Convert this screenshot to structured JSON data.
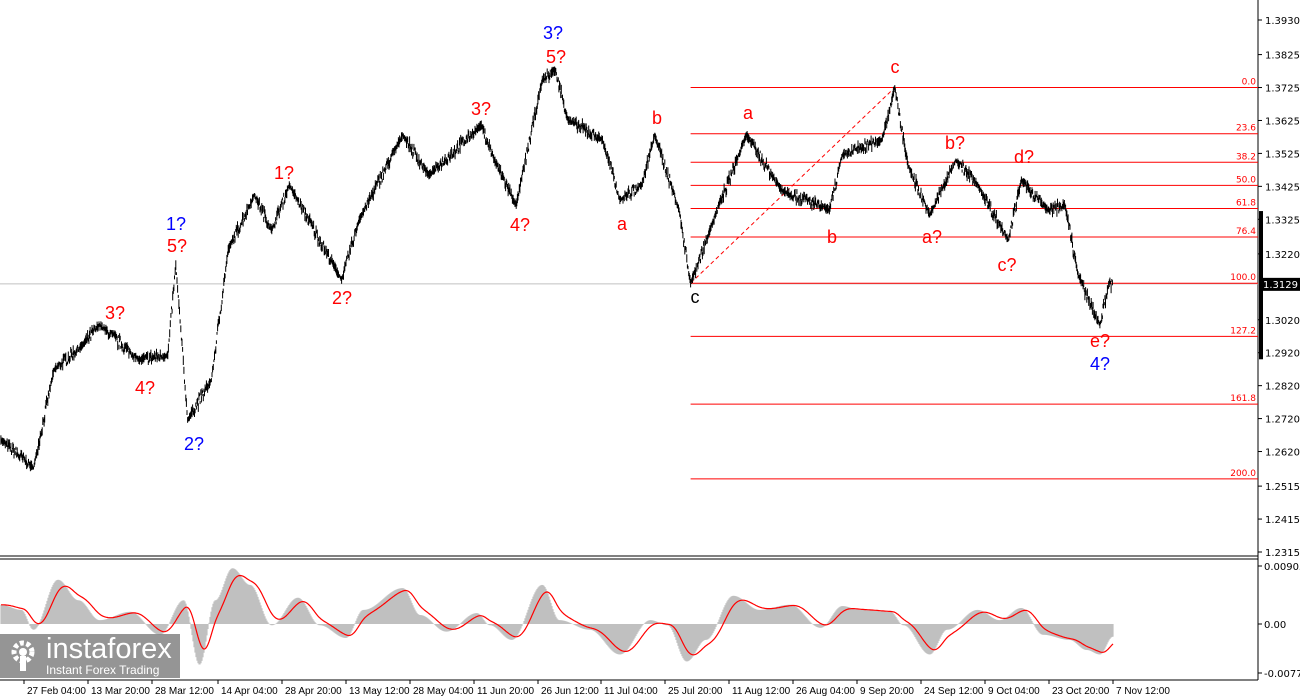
{
  "chart_data": [
    {
      "type": "line",
      "panel": "price",
      "y_ticks": [
        "1.3930",
        "1.3825",
        "1.3725",
        "1.3625",
        "1.3525",
        "1.3425",
        "1.3325",
        "1.3220",
        "1.3129",
        "1.3020",
        "1.2920",
        "1.2820",
        "1.2720",
        "1.2620",
        "1.2515",
        "1.2415",
        "1.2315"
      ],
      "ylim": [
        1.2315,
        1.393
      ],
      "current_price": "1.3129",
      "x_ticks": [
        "2:00",
        "27 Feb 04:00",
        "13 Mar 20:00",
        "28 Mar 12:00",
        "14 Apr 04:00",
        "28 Apr 20:00",
        "13 May 12:00",
        "28 May 04:00",
        "11 Jun 20:00",
        "26 Jun 12:00",
        "11 Jul 04:00",
        "25 Jul 20:00",
        "11 Aug 12:00",
        "26 Aug 04:00",
        "9 Sep 20:00",
        "24 Sep 12:00",
        "9 Oct 04:00",
        "23 Oct 20:00",
        "7 Nov 12:00"
      ],
      "series": [
        {
          "points": [
            [
              "02-21",
              1.2655
            ],
            [
              "02-29",
              1.257
            ],
            [
              "03-05",
              1.2868
            ],
            [
              "03-12",
              1.2943
            ],
            [
              "03-16",
              1.3004
            ],
            [
              "03-25",
              1.2898
            ],
            [
              "04-01",
              1.2913
            ],
            [
              "04-03",
              1.3186
            ],
            [
              "04-06",
              1.2716
            ],
            [
              "04-12",
              1.2837
            ],
            [
              "04-16",
              1.3232
            ],
            [
              "04-22",
              1.3399
            ],
            [
              "04-26",
              1.3292
            ],
            [
              "04-30",
              1.3429
            ],
            [
              "05-12",
              1.3141
            ],
            [
              "05-16",
              1.3323
            ],
            [
              "05-26",
              1.3581
            ],
            [
              "06-01",
              1.3459
            ],
            [
              "06-13",
              1.3611
            ],
            [
              "06-16",
              1.3505
            ],
            [
              "06-21",
              1.3368
            ],
            [
              "06-27",
              1.3748
            ],
            [
              "06-30",
              1.3778
            ],
            [
              "07-03",
              1.3626
            ],
            [
              "07-11",
              1.3566
            ],
            [
              "07-15",
              1.3384
            ],
            [
              "07-20",
              1.3429
            ],
            [
              "07-23",
              1.3581
            ],
            [
              "07-29",
              1.3353
            ],
            [
              "08-01",
              1.3131
            ],
            [
              "08-06",
              1.3292
            ],
            [
              "08-15",
              1.3581
            ],
            [
              "08-23",
              1.3414
            ],
            [
              "09-03",
              1.3353
            ],
            [
              "09-06",
              1.352
            ],
            [
              "09-15",
              1.3566
            ],
            [
              "09-18",
              1.3725
            ],
            [
              "09-21",
              1.349
            ],
            [
              "09-26",
              1.3338
            ],
            [
              "10-02",
              1.3505
            ],
            [
              "10-07",
              1.3429
            ],
            [
              "10-14",
              1.3262
            ],
            [
              "10-17",
              1.3444
            ],
            [
              "10-23",
              1.3353
            ],
            [
              "10-27",
              1.3368
            ],
            [
              "10-30",
              1.3156
            ],
            [
              "11-04",
              1.3004
            ],
            [
              "11-06",
              1.3126
            ],
            [
              "11-07",
              1.3129
            ]
          ]
        }
      ],
      "fibonacci": {
        "from": {
          "date": "08-01",
          "price": 1.3131
        },
        "to": {
          "date": "09-18",
          "price": 1.3725
        },
        "levels": [
          {
            "label": "0.0",
            "pct": 0
          },
          {
            "label": "23.6",
            "pct": 23.6
          },
          {
            "label": "38.2",
            "pct": 38.2
          },
          {
            "label": "50.0",
            "pct": 50
          },
          {
            "label": "61.8",
            "pct": 61.8
          },
          {
            "label": "76.4",
            "pct": 76.4
          },
          {
            "label": "100.0",
            "pct": 100
          },
          {
            "label": "127.2",
            "pct": 127.2
          },
          {
            "label": "161.8",
            "pct": 161.8
          },
          {
            "label": "200.0",
            "pct": 200
          }
        ],
        "color": "#ff0000"
      },
      "wave_labels": [
        {
          "text": "3?",
          "color": "#0000ff"
        },
        {
          "text": "5?",
          "color": "#ff0000"
        },
        {
          "text": "1?",
          "color": "#0000ff"
        },
        {
          "text": "5?",
          "color": "#ff0000"
        },
        {
          "text": "2?",
          "color": "#0000ff"
        },
        {
          "text": "4?",
          "color": "#0000ff"
        },
        {
          "text": "3?",
          "color": "#ff0000"
        },
        {
          "text": "4?",
          "color": "#ff0000"
        },
        {
          "text": "1?",
          "color": "#ff0000"
        },
        {
          "text": "2?",
          "color": "#ff0000"
        },
        {
          "text": "3?",
          "color": "#ff0000"
        },
        {
          "text": "4?",
          "color": "#ff0000"
        },
        {
          "text": "b",
          "color": "#ff0000"
        },
        {
          "text": "a",
          "color": "#ff0000"
        },
        {
          "text": "c",
          "color": "#ff0000"
        },
        {
          "text": "a",
          "color": "#ff0000"
        },
        {
          "text": "b",
          "color": "#ff0000"
        },
        {
          "text": "c",
          "color": "#ff0000"
        },
        {
          "text": "b?",
          "color": "#ff0000"
        },
        {
          "text": "a?",
          "color": "#ff0000"
        },
        {
          "text": "d?",
          "color": "#ff0000"
        },
        {
          "text": "c?",
          "color": "#ff0000"
        },
        {
          "text": "e?",
          "color": "#ff0000"
        }
      ]
    },
    {
      "type": "bar",
      "panel": "oscillator",
      "y_ticks": [
        "0.00905",
        "0.00",
        "-0.00772"
      ],
      "ylim": [
        -0.00772,
        0.00905
      ],
      "histogram_color": "#c0c0c0",
      "signal_color": "#ff0000",
      "series": [
        {
          "points": [
            [
              "02-21",
              0.003
            ],
            [
              "02-26",
              0.0022
            ],
            [
              "02-29",
              -0.0009
            ],
            [
              "03-06",
              0.0069
            ],
            [
              "03-11",
              0.0037
            ],
            [
              "03-16",
              0.0006
            ],
            [
              "03-23",
              0.0019
            ],
            [
              "03-30",
              -0.0017
            ],
            [
              "04-05",
              0.0037
            ],
            [
              "04-09",
              -0.0064
            ],
            [
              "04-13",
              0.0037
            ],
            [
              "04-17",
              0.0087
            ],
            [
              "04-21",
              0.0061
            ],
            [
              "04-26",
              -0.0002
            ],
            [
              "05-02",
              0.0041
            ],
            [
              "05-07",
              -0.0002
            ],
            [
              "05-13",
              -0.0022
            ],
            [
              "05-17",
              0.0022
            ],
            [
              "05-26",
              0.0056
            ],
            [
              "05-30",
              0.0014
            ],
            [
              "06-05",
              -0.0012
            ],
            [
              "06-12",
              0.0017
            ],
            [
              "06-15",
              -0.0002
            ],
            [
              "06-20",
              -0.0025
            ],
            [
              "06-27",
              0.0061
            ],
            [
              "07-01",
              0.0006
            ],
            [
              "07-08",
              -0.0009
            ],
            [
              "07-15",
              -0.0048
            ],
            [
              "07-22",
              0.0006
            ],
            [
              "07-26",
              -0.0002
            ],
            [
              "07-31",
              -0.0059
            ],
            [
              "08-05",
              -0.0025
            ],
            [
              "08-12",
              0.0044
            ],
            [
              "08-18",
              0.0022
            ],
            [
              "08-25",
              0.003
            ],
            [
              "09-01",
              -0.0006
            ],
            [
              "09-06",
              0.0028
            ],
            [
              "09-10",
              0.0022
            ],
            [
              "09-17",
              0.0019
            ],
            [
              "09-20",
              -0.0002
            ],
            [
              "09-26",
              -0.0048
            ],
            [
              "09-30",
              -0.0009
            ],
            [
              "10-07",
              0.0022
            ],
            [
              "10-12",
              0.0006
            ],
            [
              "10-17",
              0.0025
            ],
            [
              "10-22",
              -0.0017
            ],
            [
              "10-28",
              -0.0025
            ],
            [
              "11-01",
              -0.0041
            ],
            [
              "11-04",
              -0.0048
            ],
            [
              "11-07",
              -0.002
            ]
          ]
        }
      ]
    }
  ],
  "logo": {
    "name": "instaforex",
    "tagline": "Instant Forex Trading"
  }
}
